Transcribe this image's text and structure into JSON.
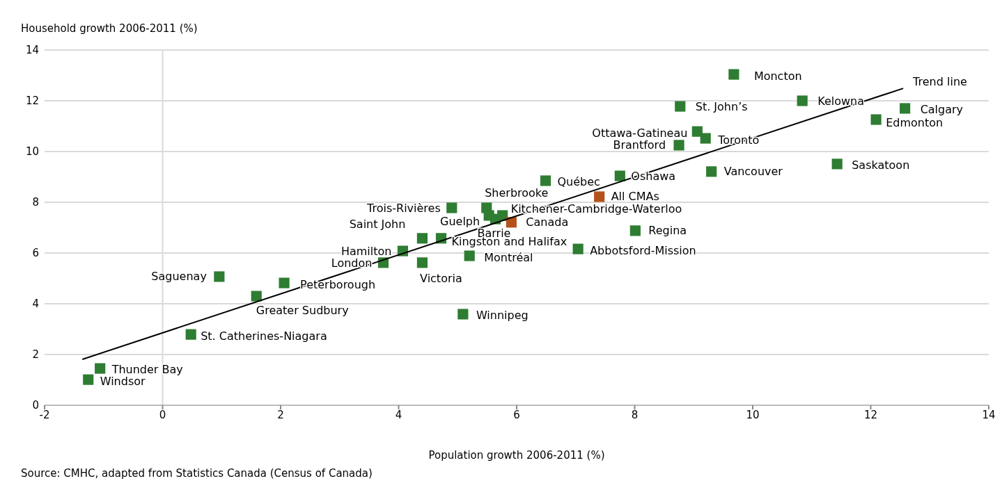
{
  "chart_data": {
    "type": "scatter",
    "xlabel": "Population growth 2006-2011 (%)",
    "ylabel": "Household growth 2006-2011 (%)",
    "xlim": [
      -2,
      14
    ],
    "xticks": [
      -2,
      0,
      2,
      4,
      6,
      8,
      10,
      12,
      14
    ],
    "ylim": [
      0,
      14
    ],
    "yticks": [
      0,
      2,
      4,
      6,
      8,
      10,
      12,
      14
    ],
    "grid": "y",
    "marker": "square",
    "ref_lines": [
      {
        "axis": "x",
        "value": 0,
        "color": "#d9d9d9"
      }
    ],
    "series": [
      {
        "color": "#2e7d32",
        "x": [
          9.68,
          10.84,
          12.58,
          12.09,
          8.77,
          9.06,
          9.2,
          8.75,
          11.43,
          9.3,
          7.75,
          6.49,
          5.49,
          4.9,
          5.76,
          5.53,
          5.64,
          4.4,
          4.72,
          4.07,
          3.74,
          4.4,
          5.2,
          7.04,
          8.01,
          0.96,
          2.06,
          1.59,
          5.09,
          0.48,
          -1.06,
          -1.26
        ],
        "values": [
          13.04,
          12.0,
          11.7,
          11.26,
          11.78,
          10.79,
          10.52,
          10.25,
          9.51,
          9.21,
          9.04,
          8.85,
          7.78,
          7.78,
          7.48,
          7.48,
          7.34,
          6.58,
          6.58,
          6.08,
          5.62,
          5.62,
          5.89,
          6.16,
          6.88,
          5.07,
          4.82,
          4.3,
          3.59,
          2.79,
          1.45,
          1.01
        ]
      },
      {
        "color": "#b5521b",
        "x": [
          7.4,
          5.91
        ],
        "values": [
          8.22,
          7.21
        ]
      },
      {
        "type": "line",
        "name": "Trend line",
        "color": "#000000",
        "line_style": "solid",
        "marker": "none",
        "x": [
          -1.36,
          12.55
        ],
        "values": [
          1.81,
          12.49
        ]
      }
    ],
    "annotations": [
      {
        "text": "Moncton",
        "x": 9.68,
        "y": 13.04
      },
      {
        "text": "Kelowna",
        "x": 10.84,
        "y": 12.0
      },
      {
        "text": "Calgary",
        "x": 12.58,
        "y": 11.7
      },
      {
        "text": "Edmonton",
        "x": 12.09,
        "y": 11.26
      },
      {
        "text": "St. John’s",
        "x": 8.77,
        "y": 11.78
      },
      {
        "text": "Ottawa-Gatineau",
        "x": 9.06,
        "y": 10.79
      },
      {
        "text": "Toronto",
        "x": 9.2,
        "y": 10.52
      },
      {
        "text": "Brantford",
        "x": 8.75,
        "y": 10.25
      },
      {
        "text": "Saskatoon",
        "x": 11.43,
        "y": 9.51
      },
      {
        "text": "Vancouver",
        "x": 9.3,
        "y": 9.21
      },
      {
        "text": "Oshawa",
        "x": 7.75,
        "y": 9.04
      },
      {
        "text": "Québec",
        "x": 6.49,
        "y": 8.85
      },
      {
        "text": "Sherbrooke",
        "x": 5.49,
        "y": 7.78
      },
      {
        "text": "Trois-Rivières",
        "x": 4.9,
        "y": 7.78
      },
      {
        "text": "Kitchener-Cambridge-Waterloo",
        "x": 5.76,
        "y": 7.48
      },
      {
        "text": "Guelph",
        "x": 5.53,
        "y": 7.48
      },
      {
        "text": "Barrie",
        "x": 5.64,
        "y": 7.34
      },
      {
        "text": "Saint John",
        "x": 4.4,
        "y": 6.58
      },
      {
        "text": "Kingston and Halifax",
        "x": 4.72,
        "y": 6.58
      },
      {
        "text": "Hamilton",
        "x": 4.07,
        "y": 6.08
      },
      {
        "text": "London",
        "x": 3.74,
        "y": 5.62
      },
      {
        "text": "Victoria",
        "x": 4.4,
        "y": 5.62
      },
      {
        "text": "Montréal",
        "x": 5.2,
        "y": 5.89
      },
      {
        "text": "Abbotsford-Mission",
        "x": 7.04,
        "y": 6.16
      },
      {
        "text": "Regina",
        "x": 8.01,
        "y": 6.88
      },
      {
        "text": "Saguenay",
        "x": 0.96,
        "y": 5.07
      },
      {
        "text": "Peterborough",
        "x": 2.06,
        "y": 4.82
      },
      {
        "text": "Greater Sudbury",
        "x": 1.59,
        "y": 4.3
      },
      {
        "text": "Winnipeg",
        "x": 5.09,
        "y": 3.59
      },
      {
        "text": "St. Catherines-Niagara",
        "x": 0.48,
        "y": 2.79
      },
      {
        "text": "Thunder Bay",
        "x": -1.06,
        "y": 1.45
      },
      {
        "text": "Windsor",
        "x": -1.26,
        "y": 1.01
      },
      {
        "text": "All CMAs",
        "x": 7.4,
        "y": 8.22
      },
      {
        "text": "Canada",
        "x": 5.91,
        "y": 7.21
      },
      "Source: CMHC, adapted from Statistics Canada (Census of Canada)"
    ]
  }
}
